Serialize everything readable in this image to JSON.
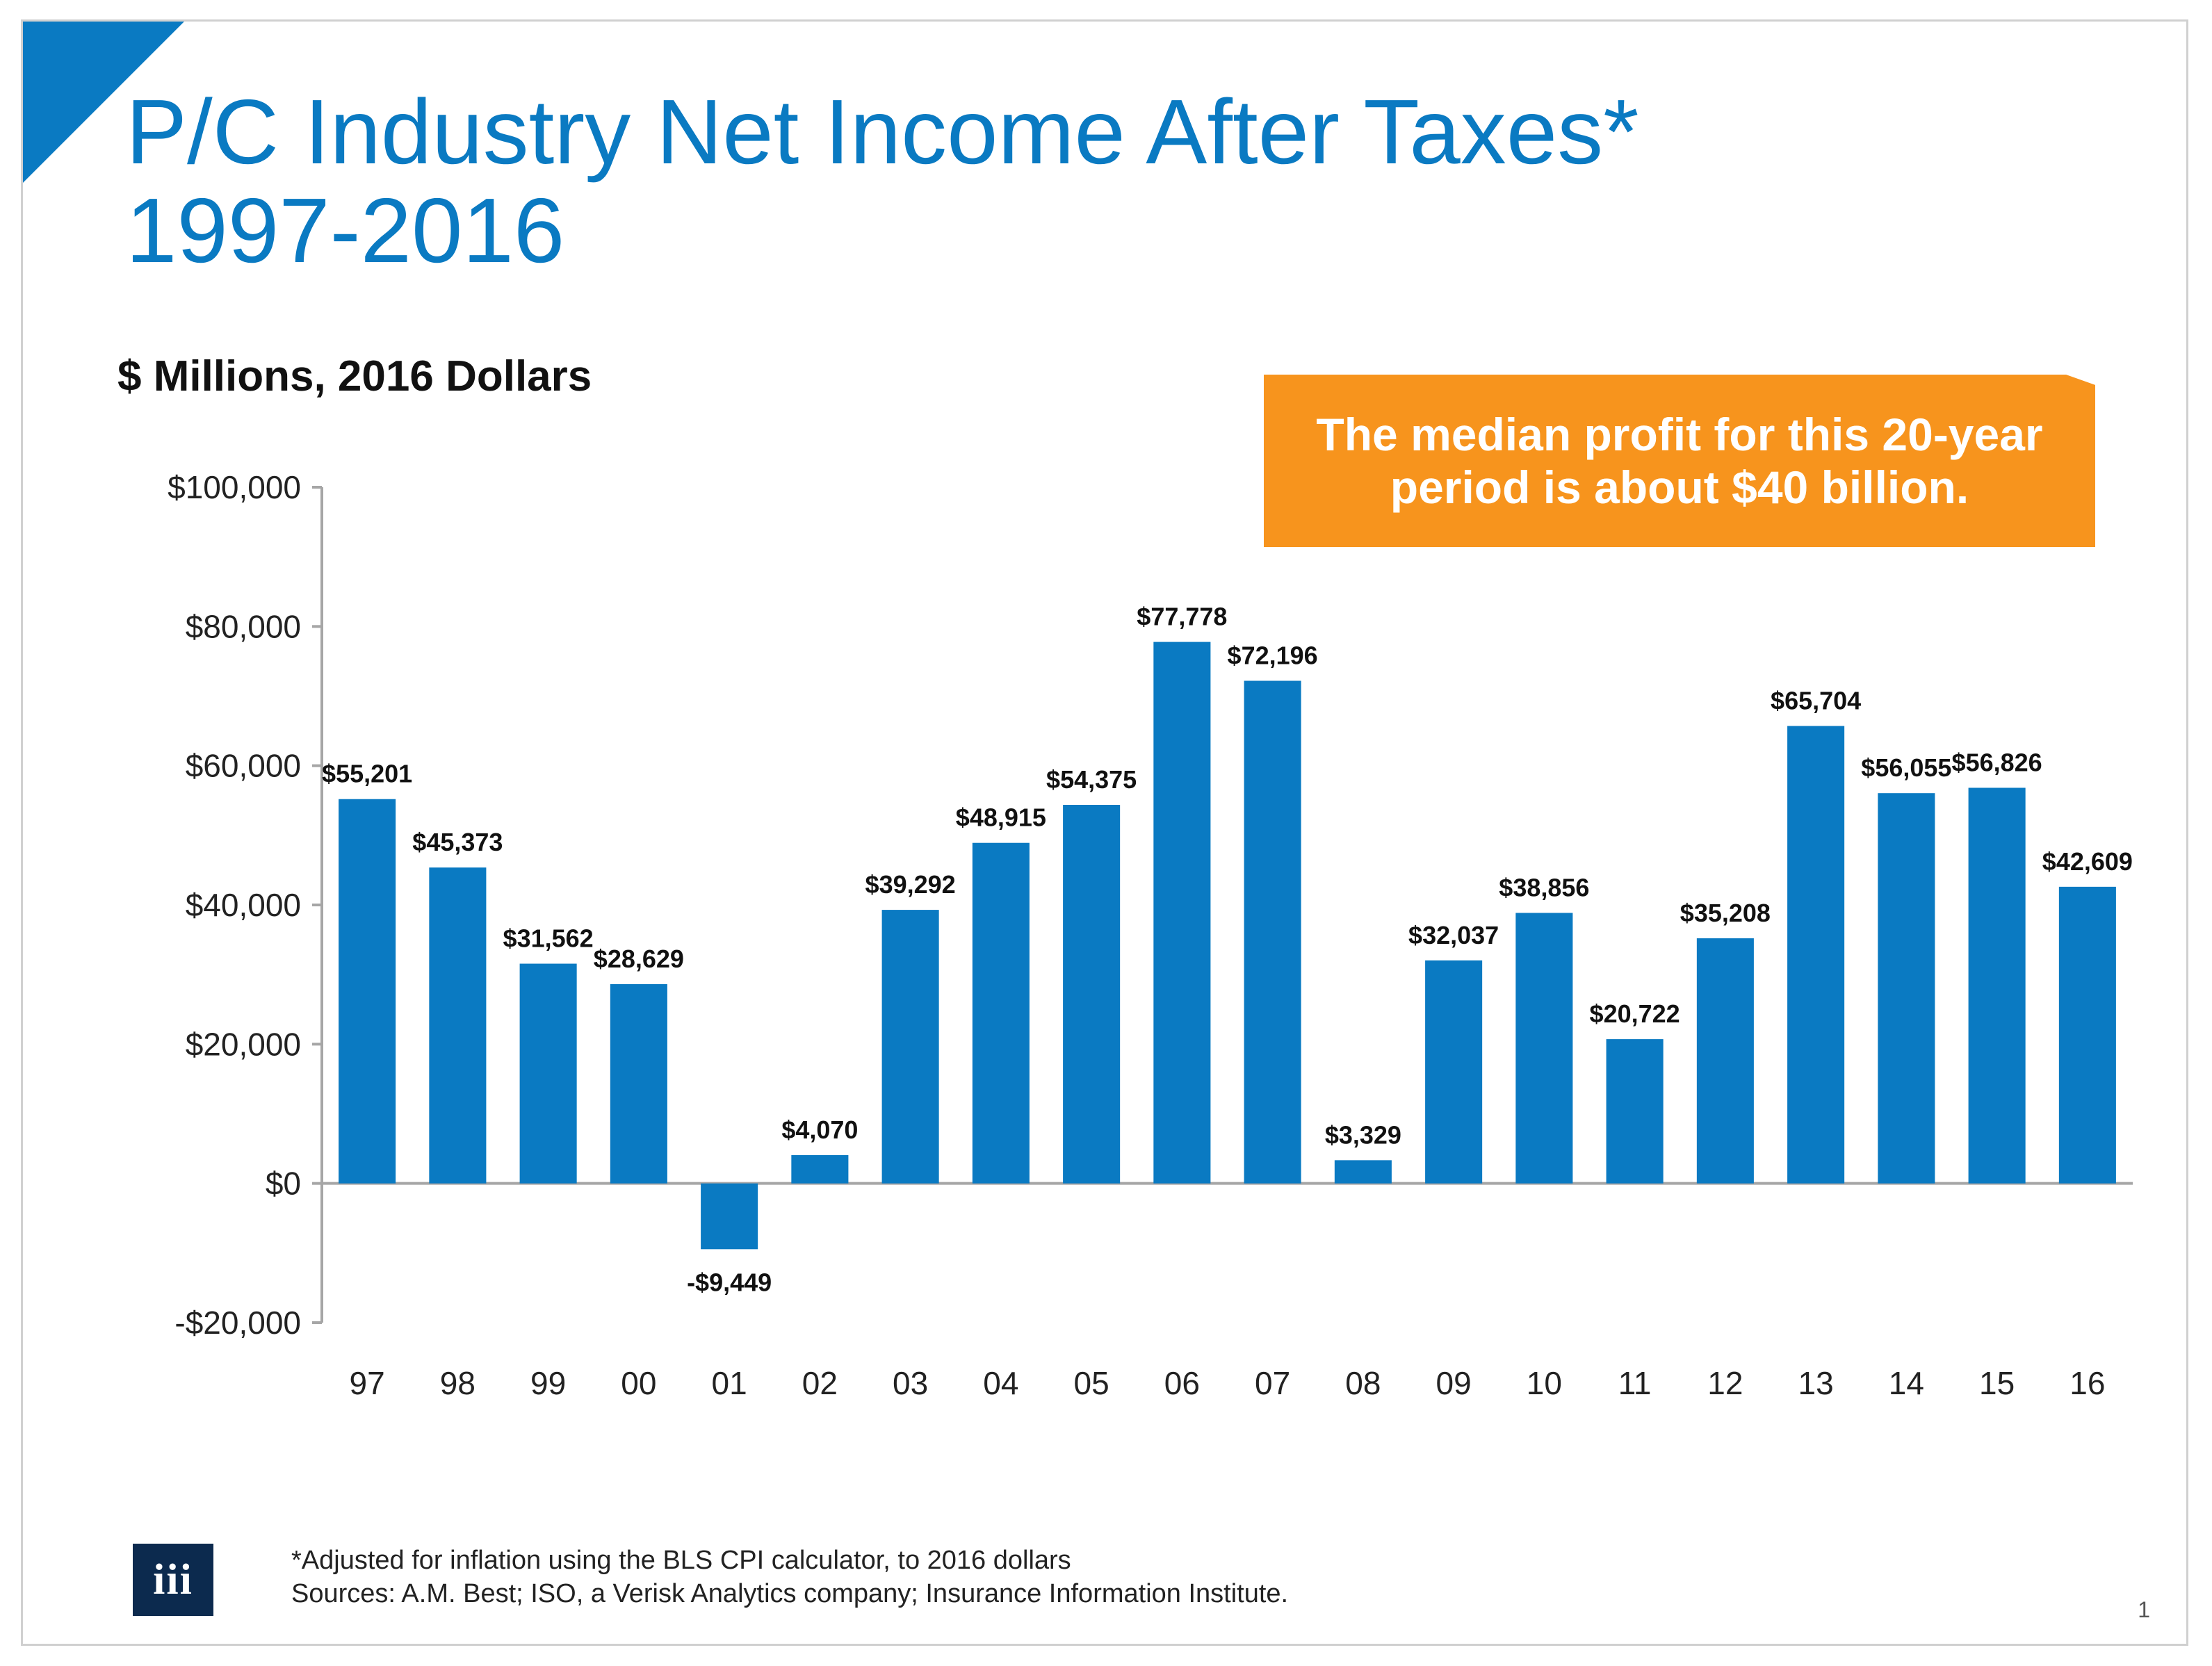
{
  "title": {
    "line1": "P/C Industry Net Income After Taxes*",
    "line2": "1997-2016"
  },
  "units_label": "$ Millions, 2016 Dollars",
  "callout": "The median profit for this 20-year period is about $40 billion.",
  "footnote": {
    "line1": "*Adjusted for inflation using the BLS CPI calculator, to 2016 dollars",
    "line2": "Sources: A.M. Best; ISO, a Verisk Analytics company; Insurance Information Institute."
  },
  "logo_text": "iii",
  "page_number": "1",
  "colors": {
    "accent": "#0a7ac2",
    "bar": "#0a7ac2",
    "callout": "#f7941d",
    "logo_bg": "#0c2a4e"
  },
  "chart_data": {
    "type": "bar",
    "title": "P/C Industry Net Income After Taxes* 1997-2016",
    "ylabel": "$ Millions, 2016 Dollars",
    "xlabel": "",
    "ylim": [
      -20000,
      100000
    ],
    "yticks": [
      {
        "value": 100000,
        "label": "$100,000"
      },
      {
        "value": 80000,
        "label": "$80,000"
      },
      {
        "value": 60000,
        "label": "$60,000"
      },
      {
        "value": 40000,
        "label": "$40,000"
      },
      {
        "value": 20000,
        "label": "$20,000"
      },
      {
        "value": 0,
        "label": "$0"
      },
      {
        "value": -20000,
        "label": "-$20,000"
      }
    ],
    "categories": [
      "97",
      "98",
      "99",
      "00",
      "01",
      "02",
      "03",
      "04",
      "05",
      "06",
      "07",
      "08",
      "09",
      "10",
      "11",
      "12",
      "13",
      "14",
      "15",
      "16"
    ],
    "values": [
      55201,
      45373,
      31562,
      28629,
      -9449,
      4070,
      39292,
      48915,
      54375,
      77778,
      72196,
      3329,
      32037,
      38856,
      20722,
      35208,
      65704,
      56055,
      56826,
      42609
    ],
    "data_labels": [
      "$55,201",
      "$45,373",
      "$31,562",
      "$28,629",
      "-$9,449",
      "$4,070",
      "$39,292",
      "$48,915",
      "$54,375",
      "$77,778",
      "$72,196",
      "$3,329",
      "$32,037",
      "$38,856",
      "$20,722",
      "$35,208",
      "$65,704",
      "$56,055",
      "$56,826",
      "$42,609"
    ],
    "grid": false,
    "legend": "none"
  }
}
